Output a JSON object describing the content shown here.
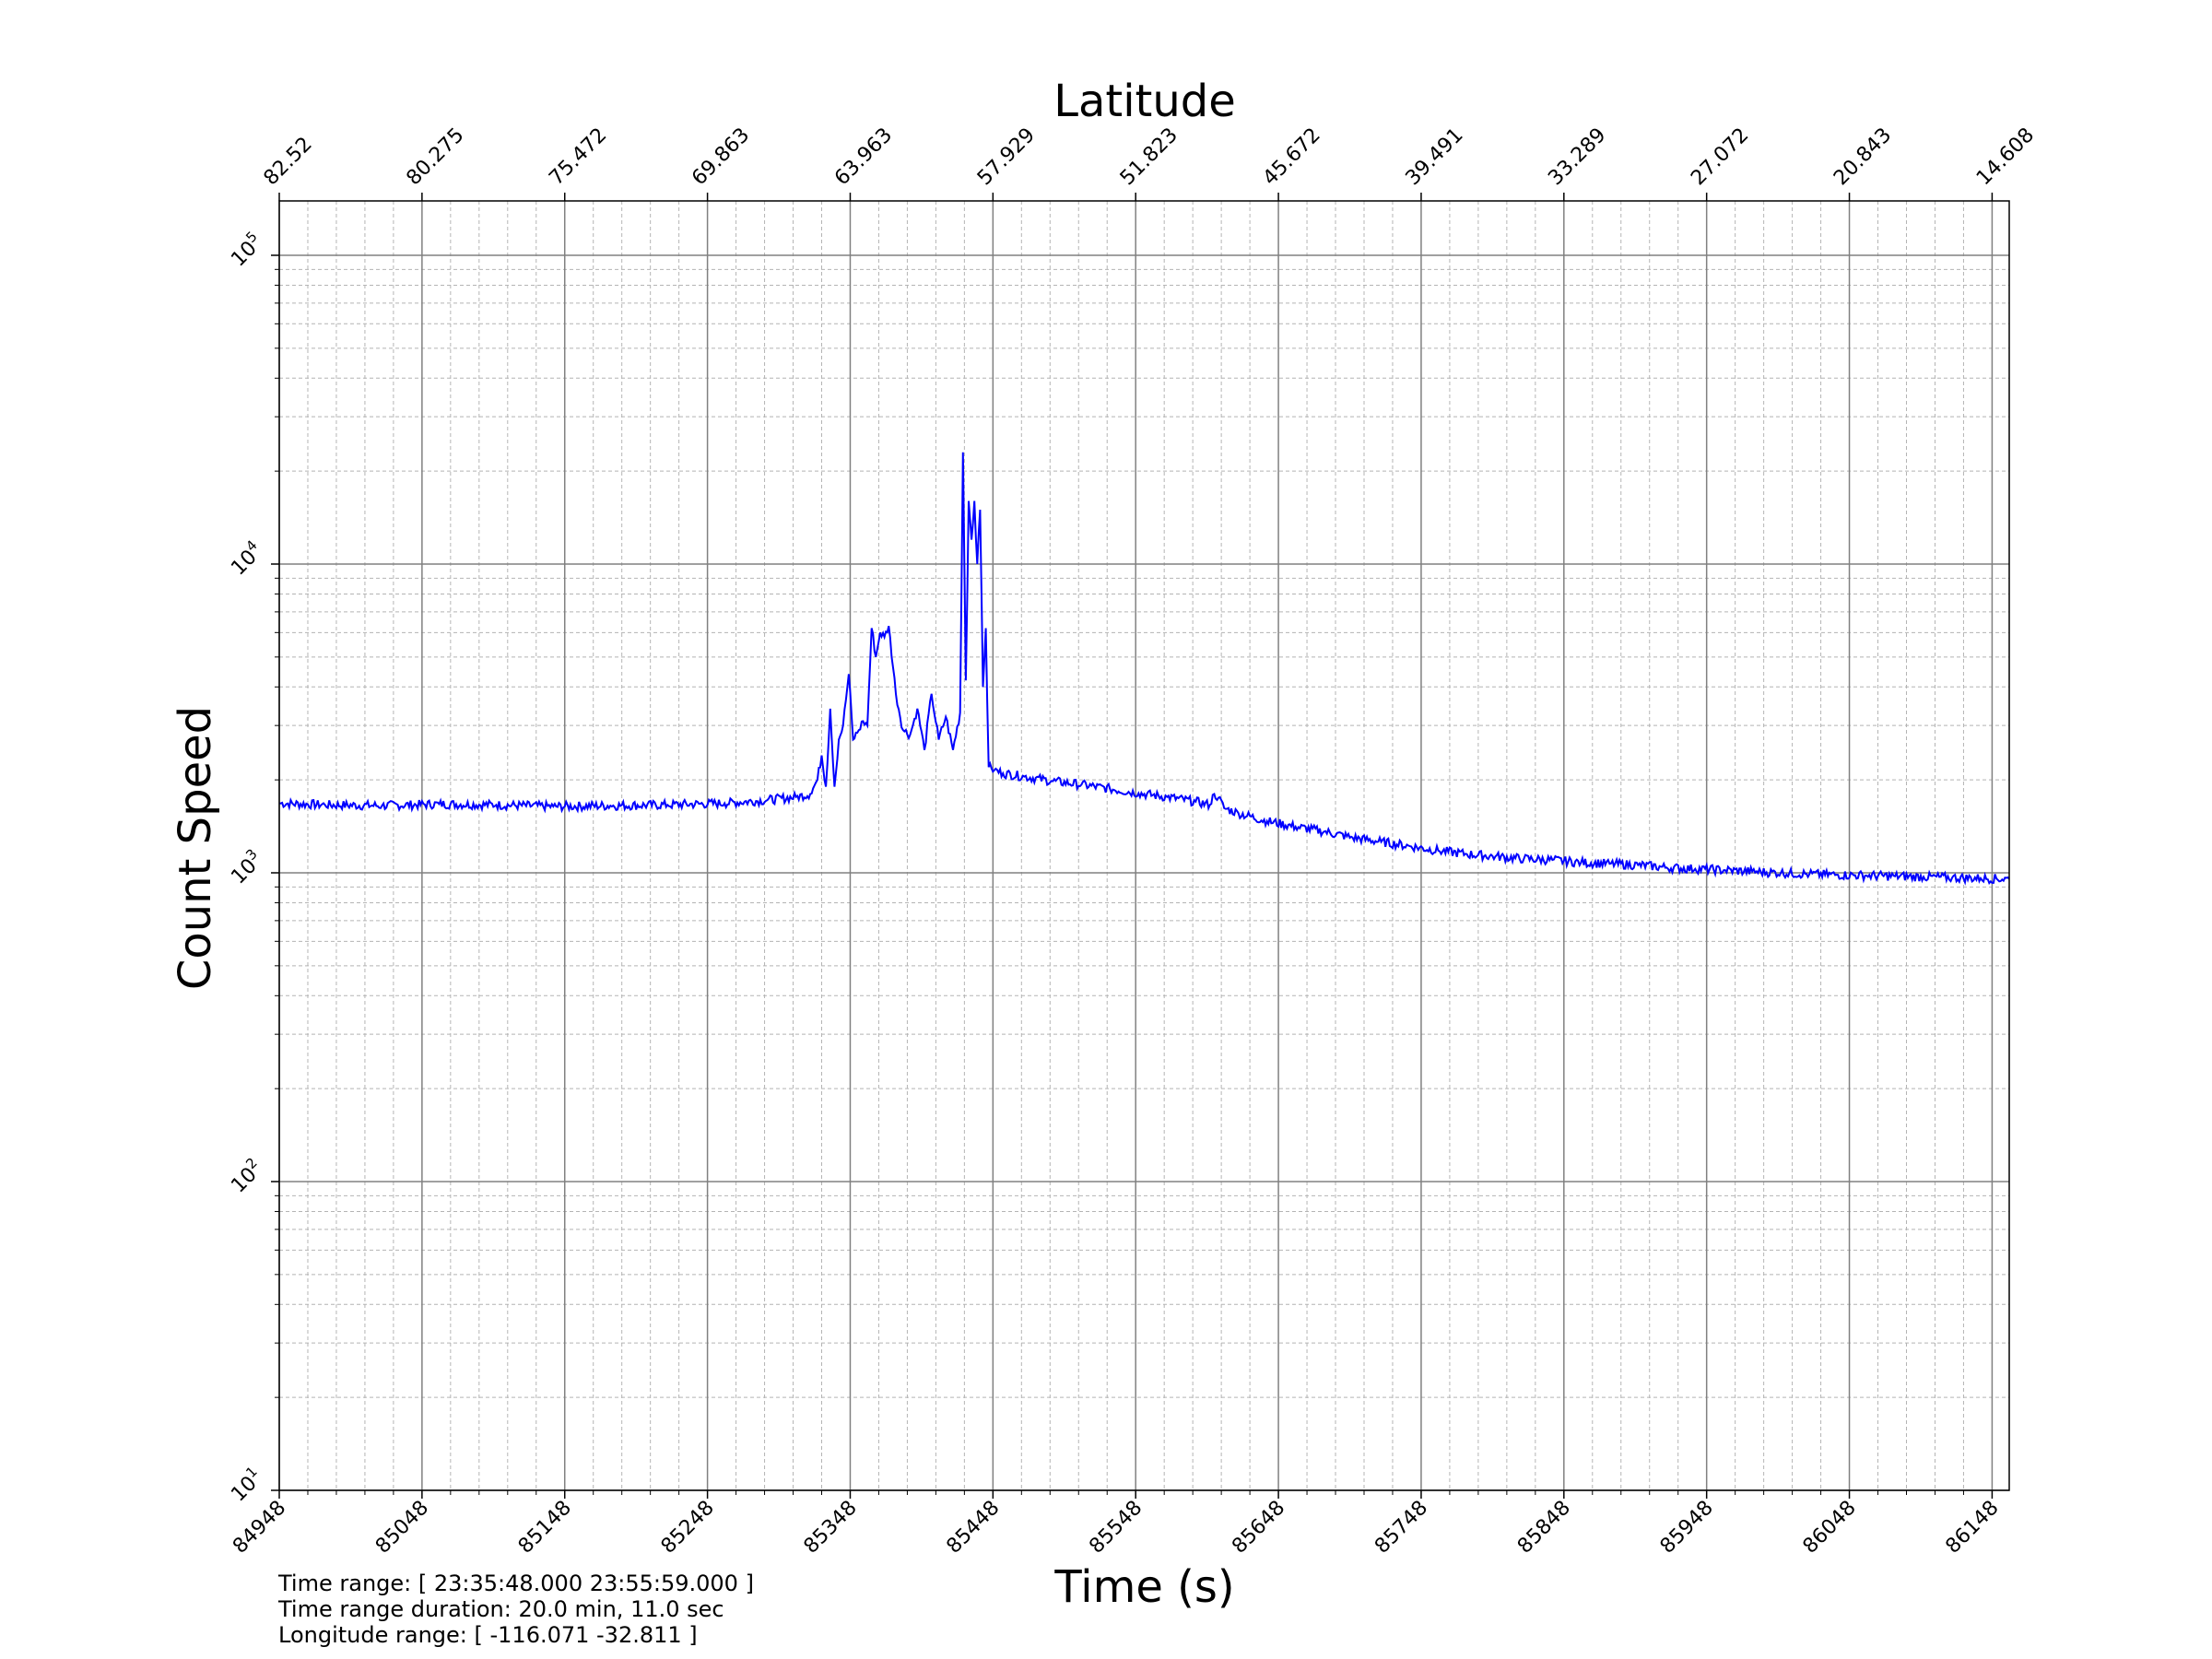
{
  "chart_data": {
    "type": "line",
    "xlabel": "Time (s)",
    "top_xlabel": "Latitude",
    "ylabel": "Count Speed",
    "yscale": "log",
    "ylim": [
      10,
      150000
    ],
    "xlim": [
      84948,
      86160
    ],
    "x_ticks": [
      "84948",
      "85048",
      "85148",
      "85248",
      "85348",
      "85448",
      "85548",
      "85648",
      "85748",
      "85848",
      "85948",
      "86048",
      "86148"
    ],
    "top_x_ticks": [
      "82.52",
      "80.275",
      "75.472",
      "69.863",
      "63.963",
      "57.929",
      "51.823",
      "45.672",
      "39.491",
      "33.289",
      "27.072",
      "20.843",
      "14.608"
    ],
    "y_ticks": [
      {
        "base": "10",
        "exp": "1"
      },
      {
        "base": "10",
        "exp": "2"
      },
      {
        "base": "10",
        "exp": "3"
      },
      {
        "base": "10",
        "exp": "4"
      },
      {
        "base": "10",
        "exp": "5"
      }
    ],
    "grid": true,
    "series_color": "#0000ff",
    "series": [
      {
        "x": [
          84948,
          84980,
          85020,
          85060,
          85100,
          85140,
          85180,
          85220,
          85260,
          85290,
          85310,
          85320,
          85325,
          85328,
          85331,
          85334,
          85337,
          85340,
          85343,
          85347,
          85350,
          85354,
          85357,
          85360,
          85363,
          85366,
          85369,
          85372,
          85375,
          85380,
          85385,
          85390,
          85395,
          85400,
          85405,
          85410,
          85415,
          85420,
          85425,
          85427,
          85429,
          85431,
          85433,
          85435,
          85437,
          85439,
          85441,
          85443,
          85445,
          85447,
          85449,
          85455,
          85470,
          85490,
          85510,
          85530,
          85550,
          85570,
          85590,
          85600,
          85603,
          85606,
          85610,
          85620,
          85640,
          85660,
          85680,
          85700,
          85720,
          85740,
          85760,
          85780,
          85800,
          85820,
          85840,
          85860,
          85880,
          85900,
          85920,
          85940,
          85960,
          85980,
          86000,
          86020,
          86040,
          86060,
          86080,
          86100,
          86120,
          86140,
          86160
        ],
        "y": [
          1680,
          1660,
          1650,
          1670,
          1660,
          1640,
          1650,
          1660,
          1680,
          1720,
          1760,
          1800,
          2000,
          2400,
          1900,
          3400,
          1900,
          2700,
          3000,
          4400,
          2700,
          2900,
          3100,
          3000,
          6200,
          5000,
          6000,
          5800,
          6300,
          3800,
          2900,
          2800,
          3400,
          2500,
          3800,
          2700,
          3200,
          2500,
          3300,
          23000,
          4200,
          16000,
          12000,
          16000,
          10000,
          15000,
          4000,
          6200,
          2200,
          2180,
          2150,
          2100,
          2050,
          1980,
          1930,
          1870,
          1810,
          1760,
          1700,
          1660,
          1800,
          1750,
          1620,
          1560,
          1470,
          1410,
          1360,
          1300,
          1260,
          1220,
          1180,
          1150,
          1130,
          1110,
          1100,
          1080,
          1070,
          1060,
          1040,
          1030,
          1020,
          1010,
          1000,
          990,
          985,
          980,
          975,
          970,
          965,
          960,
          955
        ]
      }
    ]
  },
  "info": {
    "time_range": "Time range: [ 23:35:48.000  23:55:59.000 ]",
    "duration": "Time range duration: 20.0 min, 11.0 sec",
    "longitude": "Longitude range: [ -116.071  -32.811 ]"
  }
}
